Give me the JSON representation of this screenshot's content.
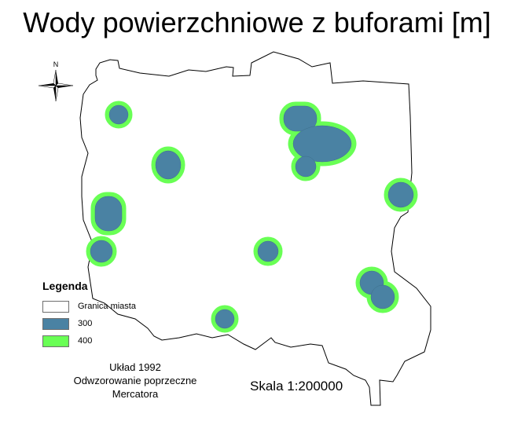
{
  "title": "Wody powierzchniowe z buforami [m]",
  "north_arrow": {
    "label": "N"
  },
  "legend": {
    "title": "Legenda",
    "items": [
      {
        "label": "Granica miasta",
        "fill": "#ffffff",
        "stroke": "#6e6e6e"
      },
      {
        "label": "300",
        "fill": "#4a82a3",
        "stroke": "#6e6e6e"
      },
      {
        "label": "400",
        "fill": "#69ff55",
        "stroke": "#6e6e6e"
      }
    ]
  },
  "projection": {
    "line1": "Układ 1992",
    "line2": "Odwzorowanie poprzeczne",
    "line3": "Mercatora"
  },
  "scale": "Skala 1:200000",
  "colors": {
    "boundary": "#000000",
    "buffer_300": "#4a82a3",
    "buffer_400": "#69ff55"
  }
}
